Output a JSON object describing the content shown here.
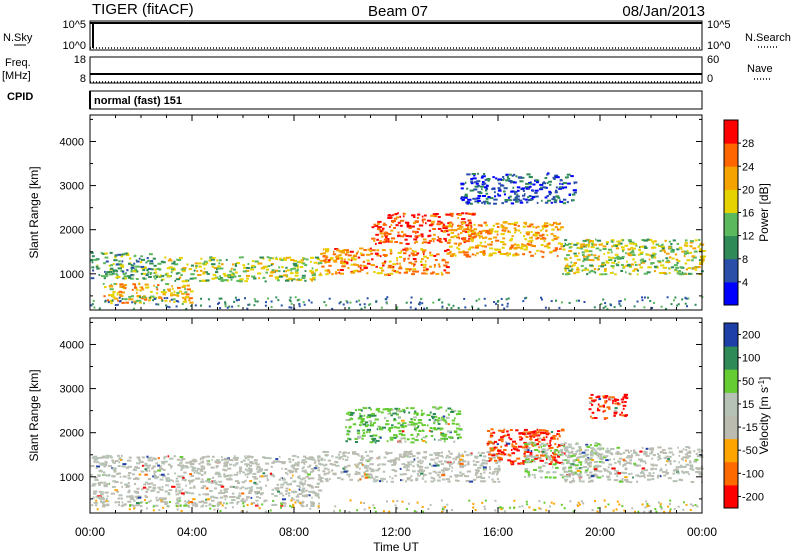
{
  "header": {
    "radar": "TIGER (fitACF)",
    "beam": "Beam 07",
    "date": "08/Jan/2013"
  },
  "strips": {
    "nsky_label": "N.Sky",
    "nsky_ticks": [
      "10^5",
      "10^0"
    ],
    "nsearch_label": "N.Search",
    "nsearch_ticks": [
      "10^5",
      "10^0"
    ],
    "freq_label": "Freq.",
    "freq_unit": "[MHz]",
    "freq_ticks": [
      "18",
      "8"
    ],
    "nave_label": "Nave",
    "nave_ticks": [
      "60",
      "0"
    ],
    "cpid_label": "CPID",
    "cpid_value": "normal (fast) 151"
  },
  "colors": {
    "power": [
      "#0000ff",
      "#2a4fa8",
      "#2e8b57",
      "#5cb85c",
      "#e6d200",
      "#f5a300",
      "#ff6600",
      "#ff0000"
    ],
    "velocity": [
      "#ff0000",
      "#ff6a00",
      "#ffa500",
      "#bbbbb0",
      "#b5c2b5",
      "#66cc33",
      "#2e8b57",
      "#1f3fa8"
    ]
  },
  "chart_data": [
    {
      "type": "heatmap",
      "ylabel": "Slant Range [km]",
      "xlabel": "Time UT",
      "xlim": [
        "00:00",
        "00:00"
      ],
      "x_ticks": [
        "00:00",
        "04:00",
        "08:00",
        "12:00",
        "16:00",
        "20:00",
        "00:00"
      ],
      "y_ticks": [
        1000,
        2000,
        3000,
        4000
      ],
      "ylim": [
        180,
        4600
      ],
      "colorbar": {
        "label": "Power [dB]",
        "ticks": [
          4,
          8,
          12,
          16,
          20,
          24,
          28
        ],
        "range": [
          0,
          32
        ]
      },
      "echo_regions": [
        {
          "hours": [
            0,
            2.5
          ],
          "range_km": [
            900,
            1500
          ],
          "value": 12
        },
        {
          "hours": [
            0.5,
            4
          ],
          "range_km": [
            350,
            800
          ],
          "value": 20
        },
        {
          "hours": [
            2.5,
            9
          ],
          "range_km": [
            850,
            1400
          ],
          "value": 16
        },
        {
          "hours": [
            9,
            14
          ],
          "range_km": [
            1000,
            1600
          ],
          "value": 24
        },
        {
          "hours": [
            11,
            15
          ],
          "range_km": [
            1700,
            2400
          ],
          "value": 28
        },
        {
          "hours": [
            14,
            18.5
          ],
          "range_km": [
            1400,
            2200
          ],
          "value": 22
        },
        {
          "hours": [
            18.5,
            24
          ],
          "range_km": [
            1000,
            1800
          ],
          "value": 16
        },
        {
          "hours": [
            14.5,
            19
          ],
          "range_km": [
            2600,
            3300
          ],
          "value": 6
        }
      ]
    },
    {
      "type": "heatmap",
      "ylabel": "Slant Range [km]",
      "xlabel": "Time UT",
      "x_ticks": [
        "00:00",
        "04:00",
        "08:00",
        "12:00",
        "16:00",
        "20:00",
        "00:00"
      ],
      "y_ticks": [
        1000,
        2000,
        3000,
        4000
      ],
      "ylim": [
        180,
        4600
      ],
      "colorbar": {
        "label": "Velocity [m s^-1]",
        "ticks": [
          -200,
          -100,
          -50,
          -15,
          15,
          50,
          100,
          200
        ],
        "range": [
          -250,
          250
        ]
      },
      "echo_regions": [
        {
          "hours": [
            0,
            9
          ],
          "range_km": [
            350,
            1500
          ],
          "value": 0
        },
        {
          "hours": [
            9,
            16
          ],
          "range_km": [
            900,
            1600
          ],
          "value": 0
        },
        {
          "hours": [
            10,
            14.5
          ],
          "range_km": [
            1800,
            2600
          ],
          "value": 100
        },
        {
          "hours": [
            15.5,
            18.5
          ],
          "range_km": [
            1300,
            2100
          ],
          "value": -180
        },
        {
          "hours": [
            17,
            20
          ],
          "range_km": [
            1000,
            1800
          ],
          "value": 50
        },
        {
          "hours": [
            18.5,
            24
          ],
          "range_km": [
            900,
            1700
          ],
          "value": 0
        },
        {
          "hours": [
            19.5,
            21
          ],
          "range_km": [
            2300,
            2900
          ],
          "value": -200
        }
      ]
    }
  ]
}
